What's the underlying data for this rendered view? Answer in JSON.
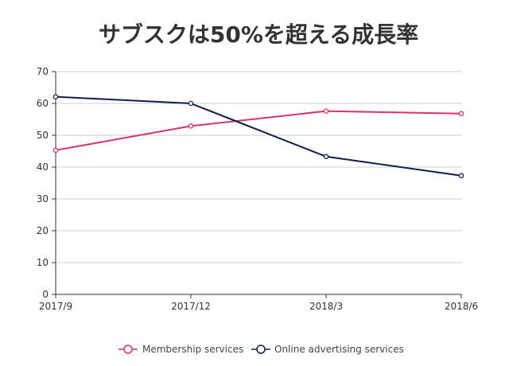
{
  "chart_data": {
    "type": "line",
    "title": "サブスクは50%を超える成長率",
    "categories": [
      "2017/9",
      "2017/12",
      "2018/3",
      "2018/6"
    ],
    "ylim": [
      0,
      70
    ],
    "yticks": [
      0,
      10,
      20,
      30,
      40,
      50,
      60,
      70
    ],
    "xlabel": "",
    "ylabel": "",
    "grid": true,
    "legend_position": "bottom",
    "series": [
      {
        "name": "Membership services",
        "color": "#d6336c",
        "values": [
          45.3,
          52.9,
          57.6,
          56.8
        ]
      },
      {
        "name": "Online advertising services",
        "color": "#0f1f4d",
        "values": [
          62.1,
          60.0,
          43.3,
          37.3
        ]
      }
    ]
  }
}
